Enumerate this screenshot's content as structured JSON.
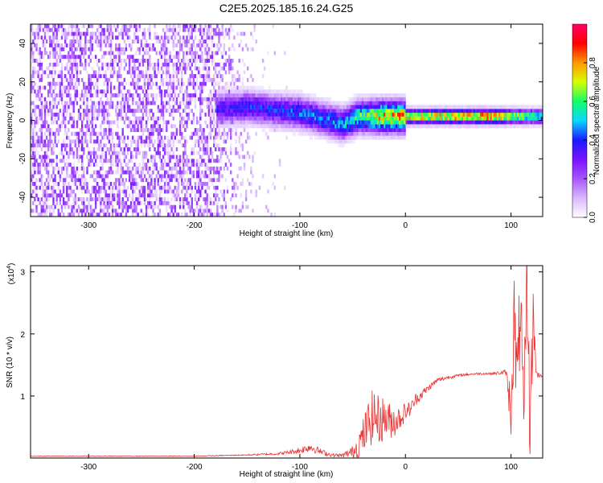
{
  "title": "C2E5.2025.185.16.24.G25",
  "colors": {
    "snr_line": "#e83232",
    "colormap": [
      "#ffffff",
      "#d9b8ff",
      "#a855ff",
      "#7a12ff",
      "#1a1aff",
      "#0ad8ff",
      "#11ff66",
      "#d8ff00",
      "#ff9900",
      "#ff0000",
      "#ff0066"
    ]
  },
  "chart_data": [
    {
      "type": "heatmap",
      "title": "C2E5.2025.185.16.24.G25",
      "xlabel": "Height of straight line (km)",
      "ylabel": "Frequency (Hz)",
      "xlim": [
        -355,
        130
      ],
      "ylim": [
        -50,
        50
      ],
      "x_ticks": [
        -300,
        -200,
        -100,
        0,
        100
      ],
      "x_tick_labels": [
        "-300",
        "-200",
        "-100",
        "0",
        "100"
      ],
      "y_ticks": [
        -40,
        -20,
        0,
        20,
        40
      ],
      "y_tick_labels": [
        "-40",
        "-20",
        "0",
        "20",
        "40"
      ],
      "colorbar": {
        "label": "Normalized spectral amplitude",
        "range": [
          0,
          1
        ],
        "ticks": [
          0,
          0.2,
          0.4,
          0.6,
          0.8
        ],
        "tick_labels": [
          "0.0",
          "0.2",
          "0.4",
          "0.6",
          "0.8"
        ]
      },
      "features": {
        "noise_region_x": [
          -355,
          -140
        ],
        "noise_amplitude": 0.12,
        "signal_band": [
          {
            "x": -180,
            "center_hz": 5,
            "amplitude": 0.35
          },
          {
            "x": -150,
            "center_hz": 6,
            "amplitude": 0.4
          },
          {
            "x": -120,
            "center_hz": 4,
            "amplitude": 0.4
          },
          {
            "x": -100,
            "center_hz": 3,
            "amplitude": 0.45
          },
          {
            "x": -80,
            "center_hz": 0,
            "amplitude": 0.45
          },
          {
            "x": -60,
            "center_hz": -3,
            "amplitude": 0.5
          },
          {
            "x": -45,
            "center_hz": 1,
            "amplitude": 0.6
          },
          {
            "x": -20,
            "center_hz": 1,
            "amplitude": 0.8
          },
          {
            "x": 0,
            "center_hz": 1,
            "amplitude": 0.8
          },
          {
            "x": 40,
            "center_hz": 1,
            "amplitude": 0.8
          },
          {
            "x": 80,
            "center_hz": 1,
            "amplitude": 0.85
          },
          {
            "x": 105,
            "center_hz": 1,
            "amplitude": 0.7
          },
          {
            "x": 130,
            "center_hz": 1,
            "amplitude": 0.55
          }
        ]
      }
    },
    {
      "type": "line",
      "xlabel": "Height of straight line (km)",
      "ylabel": "SNR (10 * v/v)",
      "y_scale_label": "(x10",
      "y_scale_exponent": "4",
      "y_scale_suffix": ")",
      "xlim": [
        -355,
        130
      ],
      "ylim": [
        0,
        3.1
      ],
      "x_ticks": [
        -300,
        -200,
        -100,
        0,
        100
      ],
      "x_tick_labels": [
        "-300",
        "-200",
        "-100",
        "0",
        "100"
      ],
      "y_ticks": [
        1,
        2,
        3
      ],
      "y_tick_labels": [
        "1",
        "2",
        "3"
      ],
      "series": [
        {
          "x": [
            -355,
            -300,
            -250,
            -200,
            -150,
            -120,
            -100,
            -90,
            -80,
            -70,
            -60,
            -50,
            -45,
            -40,
            -35,
            -30,
            -25,
            -20,
            -15,
            -10,
            -5,
            0,
            5,
            10,
            20,
            30,
            40,
            50,
            60,
            70,
            80,
            90,
            95,
            100,
            103,
            106,
            109,
            112,
            115,
            118,
            121,
            124,
            127,
            130
          ],
          "y": [
            0.03,
            0.03,
            0.03,
            0.03,
            0.05,
            0.07,
            0.12,
            0.18,
            0.1,
            0.05,
            0.04,
            0.1,
            0.2,
            0.35,
            0.55,
            0.7,
            0.6,
            0.65,
            0.6,
            0.6,
            0.65,
            0.75,
            0.8,
            0.95,
            1.1,
            1.25,
            1.3,
            1.33,
            1.35,
            1.36,
            1.36,
            1.37,
            1.38,
            0.8,
            2.3,
            1.1,
            2.6,
            0.3,
            2.9,
            0.5,
            2.3,
            1.35,
            1.33,
            1.33
          ],
          "noise": [
            0.005,
            0.005,
            0.005,
            0.005,
            0.01,
            0.02,
            0.05,
            0.08,
            0.05,
            0.03,
            0.03,
            0.1,
            0.2,
            0.3,
            0.4,
            0.45,
            0.4,
            0.35,
            0.3,
            0.25,
            0.2,
            0.15,
            0.12,
            0.1,
            0.06,
            0.04,
            0.03,
            0.02,
            0.02,
            0.02,
            0.02,
            0.03,
            0.05,
            0.5,
            0.7,
            0.8,
            0.8,
            0.8,
            0.8,
            0.7,
            0.5,
            0.08,
            0.03,
            0.03
          ]
        }
      ]
    }
  ]
}
